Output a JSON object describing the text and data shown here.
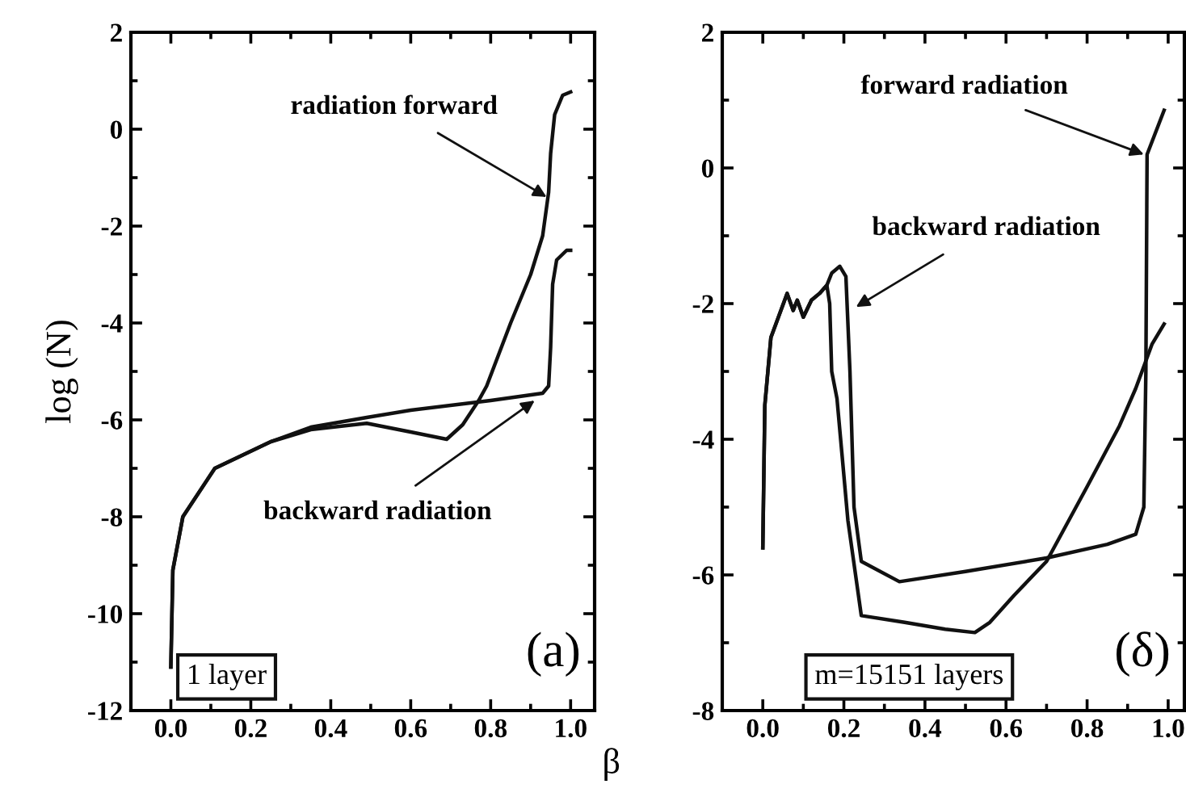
{
  "chart_data": [
    {
      "type": "line",
      "ylabel": "log (N)",
      "xlim": [
        -0.1,
        1.06
      ],
      "ylim": [
        -12,
        2
      ],
      "xticks": [
        {
          "value": 0,
          "label": "0.0"
        },
        {
          "value": 0.2,
          "label": "0.2"
        },
        {
          "value": 0.4,
          "label": "0.4"
        },
        {
          "value": 0.6,
          "label": "0.6"
        },
        {
          "value": 0.8,
          "label": "0.8"
        },
        {
          "value": 1,
          "label": "1.0"
        }
      ],
      "yticks": [
        -12,
        -10,
        -8,
        -6,
        -4,
        -2,
        0,
        2
      ],
      "grid": false,
      "legend": false,
      "series": [
        {
          "color": "#111111",
          "x": [
            0.0,
            0.005,
            0.03,
            0.11,
            0.25,
            0.35,
            0.49,
            0.6,
            0.69,
            0.73,
            0.77,
            0.79,
            0.85,
            0.9,
            0.93,
            0.945,
            0.95,
            0.96,
            0.98,
            1.0
          ],
          "values": [
            -11.1,
            -9.1,
            -8.0,
            -7.0,
            -6.45,
            -6.2,
            -6.07,
            -6.25,
            -6.4,
            -6.1,
            -5.6,
            -5.3,
            -4.0,
            -3.0,
            -2.2,
            -1.3,
            -0.5,
            0.3,
            0.7,
            0.77
          ]
        },
        {
          "color": "#111111",
          "x": [
            0.0,
            0.005,
            0.03,
            0.11,
            0.25,
            0.35,
            0.49,
            0.6,
            0.8,
            0.93,
            0.945,
            0.95,
            0.955,
            0.965,
            0.99,
            1.0
          ],
          "values": [
            -11.1,
            -9.1,
            -8.0,
            -7.0,
            -6.45,
            -6.15,
            -5.95,
            -5.8,
            -5.6,
            -5.45,
            -5.3,
            -4.5,
            -3.2,
            -2.7,
            -2.5,
            -2.5
          ]
        }
      ],
      "annotations": [
        {
          "text": "radiation forward",
          "x": 0.94,
          "y": -1.4
        },
        {
          "text": "backward radiation",
          "x": 0.91,
          "y": -5.6
        },
        "1 layer",
        "(a)"
      ]
    },
    {
      "type": "line",
      "xlabel": "β",
      "xlim": [
        -0.1,
        1.04
      ],
      "ylim": [
        -8,
        2
      ],
      "xticks": [
        {
          "value": 0,
          "label": "0.0"
        },
        {
          "value": 0.2,
          "label": "0.2"
        },
        {
          "value": 0.4,
          "label": "0.4"
        },
        {
          "value": 0.6,
          "label": "0.6"
        },
        {
          "value": 0.8,
          "label": "0.8"
        },
        {
          "value": 1,
          "label": "1.0"
        }
      ],
      "yticks": [
        -8,
        -6,
        -4,
        -2,
        0,
        2
      ],
      "grid": false,
      "legend": false,
      "series": [
        {
          "color": "#111111",
          "x": [
            0.0,
            0.005,
            0.02,
            0.06,
            0.075,
            0.085,
            0.1,
            0.12,
            0.14,
            0.158,
            0.17,
            0.19,
            0.205,
            0.215,
            0.225,
            0.243,
            0.337,
            0.5,
            0.7,
            0.85,
            0.92,
            0.94,
            0.945,
            0.948,
            0.99
          ],
          "values": [
            -5.6,
            -3.5,
            -2.5,
            -1.85,
            -2.1,
            -1.95,
            -2.2,
            -1.95,
            -1.85,
            -1.73,
            -1.55,
            -1.45,
            -1.6,
            -3.0,
            -5.0,
            -5.8,
            -6.1,
            -5.95,
            -5.75,
            -5.55,
            -5.4,
            -5.0,
            -3.0,
            0.2,
            0.85
          ]
        },
        {
          "color": "#111111",
          "x": [
            0.0,
            0.005,
            0.02,
            0.06,
            0.075,
            0.085,
            0.1,
            0.12,
            0.14,
            0.158,
            0.165,
            0.17,
            0.183,
            0.195,
            0.21,
            0.243,
            0.35,
            0.45,
            0.523,
            0.56,
            0.62,
            0.7,
            0.8,
            0.88,
            0.92,
            0.96,
            0.99
          ],
          "values": [
            -5.6,
            -3.5,
            -2.5,
            -1.85,
            -2.1,
            -1.95,
            -2.2,
            -1.95,
            -1.85,
            -1.73,
            -2.0,
            -3.0,
            -3.4,
            -4.2,
            -5.2,
            -6.6,
            -6.7,
            -6.8,
            -6.85,
            -6.7,
            -6.3,
            -5.8,
            -4.7,
            -3.8,
            -3.25,
            -2.6,
            -2.3
          ]
        }
      ],
      "annotations": [
        {
          "text": "forward radiation",
          "x": 0.94,
          "y": 0.2
        },
        {
          "text": "backward radiation",
          "x": 0.23,
          "y": -2.05
        },
        "m=15151 layers",
        "(δ)"
      ]
    }
  ]
}
